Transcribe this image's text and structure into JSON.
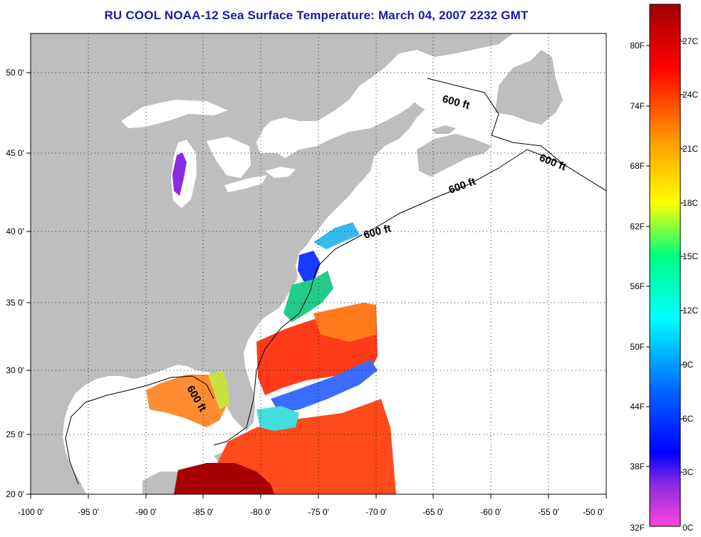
{
  "title": "RU COOL  NOAA-12  Sea Surface Temperature:  March 04, 2007 2232 GMT",
  "title_color": "#1a1aa6",
  "colors": {
    "land": "#bebebe",
    "no_data": "#ffffff",
    "frame": "#000000",
    "grid": "#000000"
  },
  "map": {
    "longitude_labels": [
      "-100 0'",
      "-95 0'",
      "-90 0'",
      "-85 0'",
      "-80 0'",
      "-75 0'",
      "-70 0'",
      "-65 0'",
      "-60 0'",
      "-55 0'",
      "-50 0'"
    ],
    "latitude_labels": [
      "50 0'",
      "45 0'",
      "40 0'",
      "35 0'",
      "30 0'",
      "25 0'",
      "20 0'"
    ],
    "lon_range": [
      -100,
      -50
    ],
    "lat_range": [
      20,
      52.5
    ],
    "grid": "dotted",
    "contour_label": "600 ft"
  },
  "colorbar": {
    "fahrenheit_labels": [
      "80F",
      "74F",
      "68F",
      "62F",
      "56F",
      "50F",
      "44F",
      "38F",
      "32F"
    ],
    "celsius_labels": [
      "27C",
      "24C",
      "21C",
      "18C",
      "15C",
      "12C",
      "9C",
      "6C",
      "3C",
      "0C"
    ],
    "range_celsius": [
      0,
      29
    ],
    "stops": [
      "#ff44dd",
      "#8a2be2",
      "#0000ff",
      "#0066ff",
      "#00ffff",
      "#00ff80",
      "#ffff00",
      "#ff9900",
      "#ff0000",
      "#a00000"
    ]
  }
}
